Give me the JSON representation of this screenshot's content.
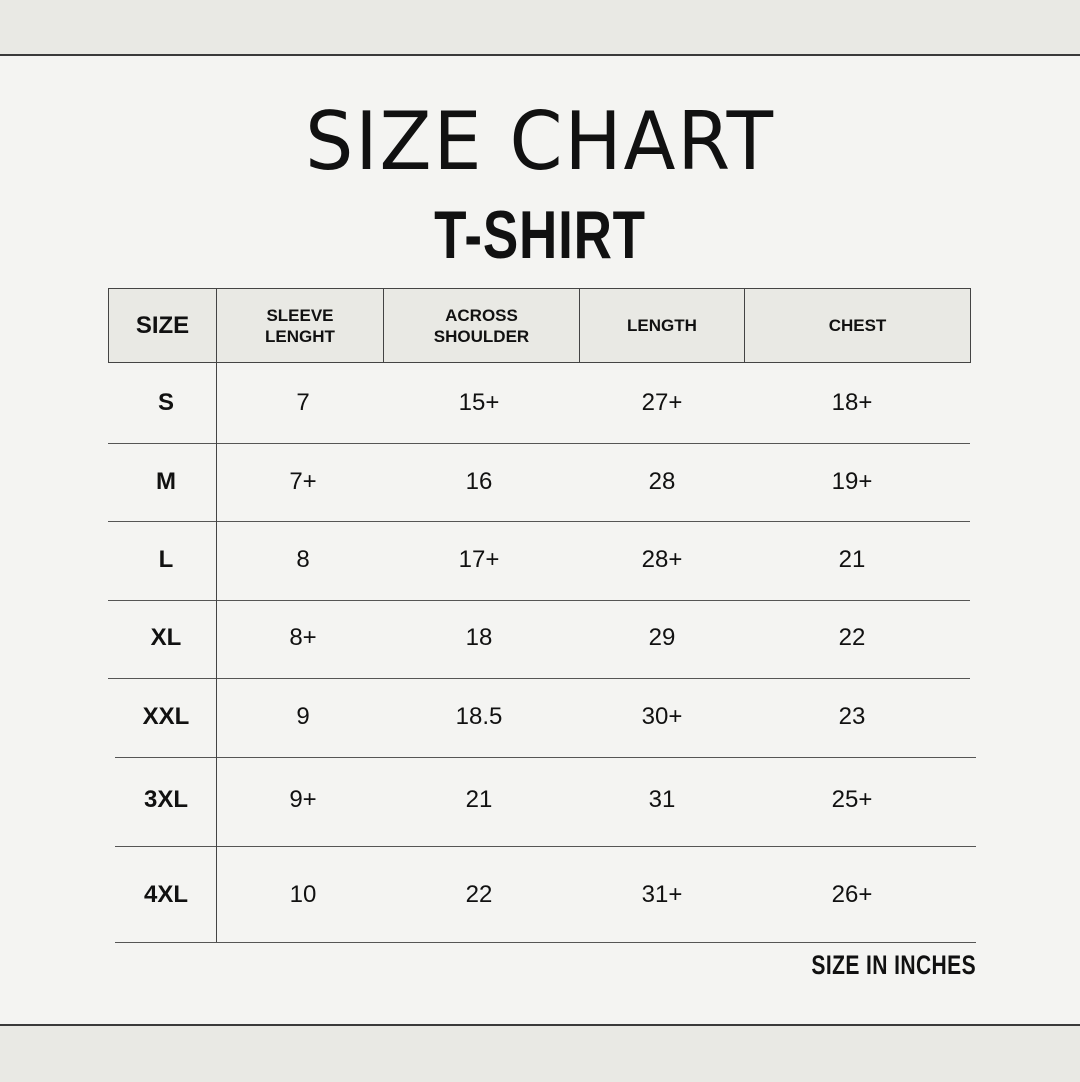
{
  "title": "SIZE CHART",
  "subtitle": "T-SHIRT",
  "note": "SIZE IN INCHES",
  "table": {
    "headers": [
      "SIZE",
      "SLEEVE\nLENGHT",
      "ACROSS\nSHOULDER",
      "LENGTH",
      "CHEST"
    ],
    "rows": [
      [
        "S",
        "7",
        "15+",
        "27+",
        "18+"
      ],
      [
        "M",
        "7+",
        "16",
        "28",
        "19+"
      ],
      [
        "L",
        "8",
        "17+",
        "28+",
        "21"
      ],
      [
        "XL",
        "8+",
        "18",
        "29",
        "22"
      ],
      [
        "XXL",
        "9",
        "18.5",
        "30+",
        "23"
      ],
      [
        "3XL",
        "9+",
        "21",
        "31",
        "25+"
      ],
      [
        "4XL",
        "10",
        "22",
        "31+",
        "26+"
      ]
    ]
  },
  "colors": {
    "header_bg": "#e9e9e4",
    "background": "#f4f4f2",
    "text": "#111111"
  }
}
